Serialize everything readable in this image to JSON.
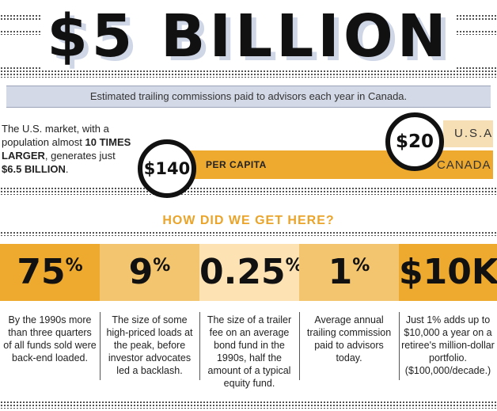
{
  "headline": "$5 BILLION",
  "subtitle": "Estimated trailing commissions paid to advisors each year in Canada.",
  "intro": {
    "part1": "The U.S. market, with a population almost ",
    "bold1": "10 TIMES LARGER",
    "part2": ", generates just ",
    "bold2": "$6.5 BILLION",
    "part3": "."
  },
  "per_capita": {
    "usa_value": "$20",
    "usa_label": "U.S.A",
    "canada_value": "$140",
    "canada_label": "CANADA",
    "label": "PER CAPITA"
  },
  "question": "HOW DID WE GET HERE?",
  "stats": [
    {
      "value": "75",
      "suffix": "%",
      "description": "By the 1990s more than three quarters of all funds sold were back-end loaded."
    },
    {
      "value": "9",
      "suffix": "%",
      "description": "The size of some high-priced loads at the peak, before investor advocates led a backlash."
    },
    {
      "value": "0.25",
      "suffix": "%",
      "description": "The size of a trailer fee on an average bond fund in the 1990s, half the amount of a typical equity fund."
    },
    {
      "value": "1",
      "suffix": "%",
      "description": "Average annual trailing commission paid to advisors today."
    },
    {
      "value": "$10K",
      "suffix": "",
      "description": "Just 1% adds up to $10,000 a year on a retiree's million-dollar portfolio. ($100,000/decade.)"
    }
  ],
  "colors": {
    "accent": "#eeaa2e",
    "accent_mid": "#f3c56f",
    "accent_light": "#fde2b4",
    "band": "#d3d9e6"
  }
}
